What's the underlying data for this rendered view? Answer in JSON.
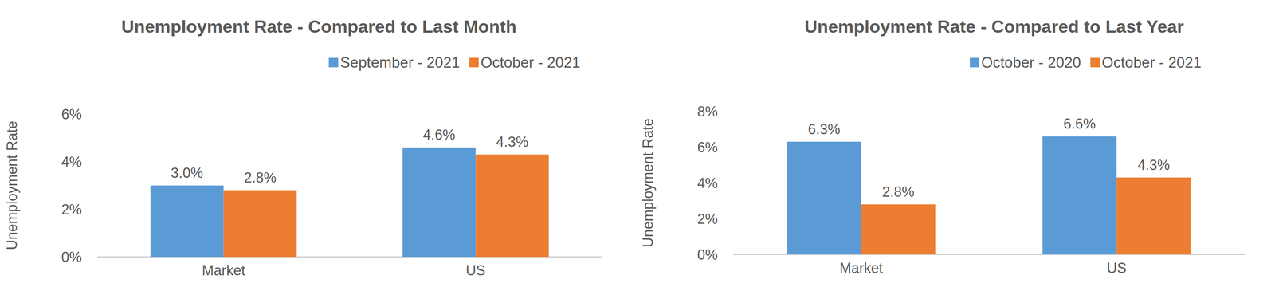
{
  "chart_data": [
    {
      "type": "bar",
      "title": "Unemployment Rate - Compared to Last Month",
      "y_label": "Unemployment Rate",
      "categories": [
        "Market",
        "US"
      ],
      "series": [
        {
          "name": "September - 2021",
          "color": "#5b9bd5",
          "values": [
            3.0,
            4.6
          ],
          "value_labels": [
            "3.0%",
            "4.6%"
          ]
        },
        {
          "name": "October - 2021",
          "color": "#ed7d31",
          "values": [
            2.8,
            4.3
          ],
          "value_labels": [
            "2.8%",
            "4.3%"
          ]
        }
      ],
      "ylim": [
        0,
        6
      ],
      "yticks": [
        {
          "value": 0,
          "label": "0%"
        },
        {
          "value": 2,
          "label": "2%"
        },
        {
          "value": 4,
          "label": "4%"
        },
        {
          "value": 6,
          "label": "6%"
        }
      ],
      "grid": false,
      "legend": "top",
      "data_labels": true
    },
    {
      "type": "bar",
      "title": "Unemployment Rate - Compared to Last Year",
      "y_label": "Unemployment Rate",
      "categories": [
        "Market",
        "US"
      ],
      "series": [
        {
          "name": "October - 2020",
          "color": "#5b9bd5",
          "values": [
            6.3,
            6.6
          ],
          "value_labels": [
            "6.3%",
            "6.6%"
          ]
        },
        {
          "name": "October - 2021",
          "color": "#ed7d31",
          "values": [
            2.8,
            4.3
          ],
          "value_labels": [
            "2.8%",
            "4.3%"
          ]
        }
      ],
      "ylim": [
        0,
        8
      ],
      "yticks": [
        {
          "value": 0,
          "label": "0%"
        },
        {
          "value": 2,
          "label": "2%"
        },
        {
          "value": 4,
          "label": "4%"
        },
        {
          "value": 6,
          "label": "6%"
        },
        {
          "value": 8,
          "label": "8%"
        }
      ],
      "grid": false,
      "legend": "top",
      "data_labels": true
    }
  ]
}
